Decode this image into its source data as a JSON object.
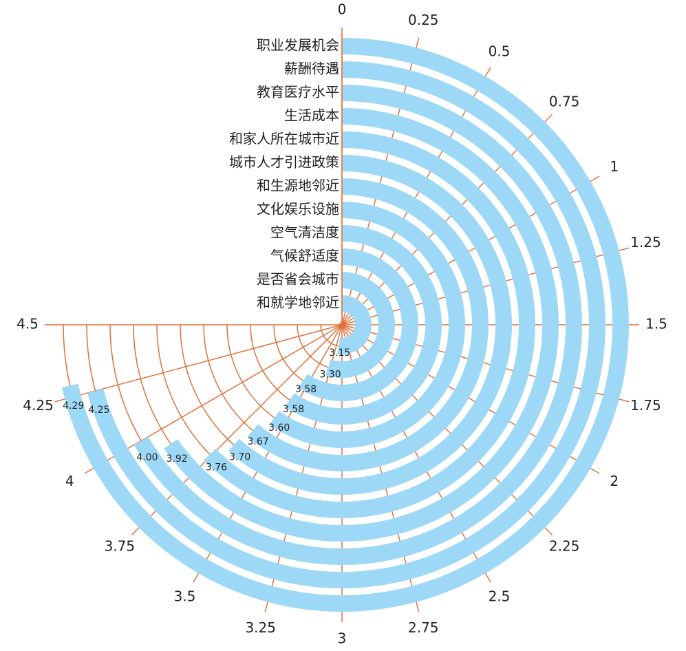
{
  "chart_data": {
    "type": "radial_bar",
    "categories": [
      "职业发展机会",
      "薪酬待遇",
      "教育医疗水平",
      "生活成本",
      "和家人所在城市近",
      "城市人才引进政策",
      "和生源地邻近",
      "文化娱乐设施",
      "空气清洁度",
      "气候舒适度",
      "是否省会城市",
      "和就学地邻近"
    ],
    "values": [
      4.29,
      4.25,
      4.0,
      3.92,
      3.76,
      3.7,
      3.67,
      3.6,
      3.58,
      3.58,
      3.3,
      3.15
    ],
    "value_labels": [
      "4.29",
      "4.25",
      "4.00",
      "3.92",
      "3.76",
      "3.70",
      "3.67",
      "3.60",
      "3.58",
      "3.58",
      "3.30",
      "3.15"
    ],
    "color": "#9dd8f7",
    "axis_color": "#e2703a",
    "xlim": [
      0,
      4.5
    ],
    "xticks": [
      0,
      0.25,
      0.5,
      0.75,
      1,
      1.25,
      1.5,
      1.75,
      2,
      2.25,
      2.5,
      2.75,
      3,
      3.25,
      3.5,
      3.75,
      4,
      4.25,
      4.5
    ],
    "grid": true
  }
}
